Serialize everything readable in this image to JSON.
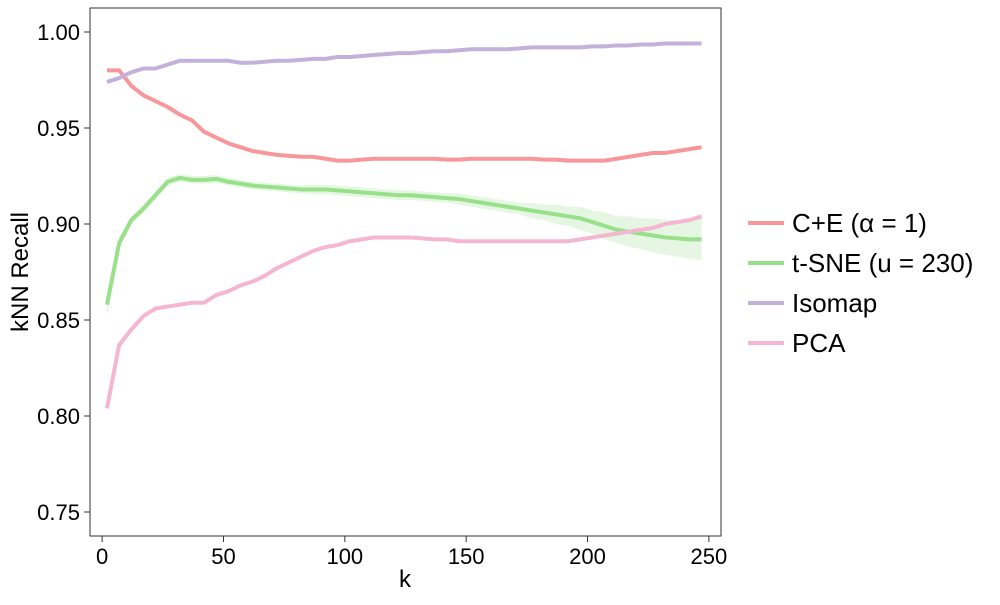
{
  "chart_data": {
    "type": "line",
    "title": "",
    "xlabel": "k",
    "ylabel": "kNN Recall",
    "xlim": [
      -5,
      255
    ],
    "ylim": [
      0.7375,
      1.0125
    ],
    "xticks": [
      0,
      50,
      100,
      150,
      200,
      250
    ],
    "xtick_labels": [
      "0",
      "50",
      "100",
      "150",
      "200",
      "250"
    ],
    "yticks": [
      0.75,
      0.8,
      0.85,
      0.9,
      0.95,
      1.0
    ],
    "ytick_labels": [
      "0.75",
      "0.80",
      "0.85",
      "0.90",
      "0.95",
      "1.00"
    ],
    "grid": false,
    "legend_position": "right",
    "series": [
      {
        "name": "C+E (α = 1)",
        "color": "#F8969A",
        "x": [
          2,
          7,
          12,
          17,
          22,
          27,
          32,
          37,
          42,
          47,
          52,
          57,
          62,
          67,
          72,
          77,
          82,
          87,
          92,
          97,
          102,
          107,
          112,
          117,
          122,
          127,
          132,
          137,
          142,
          147,
          152,
          157,
          162,
          167,
          172,
          177,
          182,
          187,
          192,
          197,
          202,
          207,
          212,
          217,
          222,
          227,
          232,
          237,
          242,
          247
        ],
        "y": [
          0.98,
          0.98,
          0.972,
          0.967,
          0.964,
          0.961,
          0.957,
          0.954,
          0.948,
          0.945,
          0.942,
          0.94,
          0.938,
          0.937,
          0.936,
          0.9355,
          0.935,
          0.935,
          0.934,
          0.933,
          0.933,
          0.9335,
          0.934,
          0.934,
          0.934,
          0.934,
          0.934,
          0.934,
          0.9335,
          0.9335,
          0.934,
          0.934,
          0.934,
          0.934,
          0.934,
          0.934,
          0.9335,
          0.9335,
          0.933,
          0.933,
          0.933,
          0.933,
          0.934,
          0.935,
          0.936,
          0.937,
          0.937,
          0.938,
          0.939,
          0.94
        ]
      },
      {
        "name": "t-SNE (u = 230)",
        "color": "#98E08A",
        "band_color": "#98E08A",
        "x": [
          2,
          7,
          12,
          17,
          22,
          27,
          32,
          37,
          42,
          47,
          52,
          57,
          62,
          67,
          72,
          77,
          82,
          87,
          92,
          97,
          102,
          107,
          112,
          117,
          122,
          127,
          132,
          137,
          142,
          147,
          152,
          157,
          162,
          167,
          172,
          177,
          182,
          187,
          192,
          197,
          202,
          207,
          212,
          217,
          222,
          227,
          232,
          237,
          242,
          247
        ],
        "y": [
          0.858,
          0.89,
          0.902,
          0.908,
          0.915,
          0.922,
          0.924,
          0.923,
          0.923,
          0.9235,
          0.922,
          0.921,
          0.92,
          0.9195,
          0.919,
          0.9185,
          0.918,
          0.918,
          0.918,
          0.9175,
          0.917,
          0.9165,
          0.916,
          0.9155,
          0.915,
          0.915,
          0.9145,
          0.914,
          0.9135,
          0.913,
          0.912,
          0.911,
          0.91,
          0.909,
          0.908,
          0.907,
          0.906,
          0.905,
          0.904,
          0.903,
          0.901,
          0.899,
          0.897,
          0.896,
          0.895,
          0.894,
          0.893,
          0.8925,
          0.892,
          0.892
        ],
        "lower": [
          0.852,
          0.887,
          0.9,
          0.906,
          0.913,
          0.92,
          0.922,
          0.921,
          0.921,
          0.9215,
          0.92,
          0.919,
          0.918,
          0.9175,
          0.917,
          0.9165,
          0.916,
          0.9155,
          0.9155,
          0.915,
          0.9145,
          0.914,
          0.9135,
          0.913,
          0.9125,
          0.9125,
          0.912,
          0.9115,
          0.911,
          0.91,
          0.909,
          0.908,
          0.907,
          0.906,
          0.905,
          0.903,
          0.902,
          0.9,
          0.899,
          0.897,
          0.895,
          0.892,
          0.89,
          0.888,
          0.887,
          0.885,
          0.884,
          0.883,
          0.882,
          0.881
        ],
        "upper": [
          0.864,
          0.893,
          0.904,
          0.91,
          0.917,
          0.924,
          0.926,
          0.925,
          0.925,
          0.9255,
          0.924,
          0.923,
          0.922,
          0.9215,
          0.921,
          0.9205,
          0.92,
          0.9205,
          0.9205,
          0.92,
          0.9195,
          0.919,
          0.9185,
          0.918,
          0.9175,
          0.9175,
          0.917,
          0.9165,
          0.916,
          0.916,
          0.915,
          0.914,
          0.913,
          0.912,
          0.911,
          0.911,
          0.91,
          0.91,
          0.909,
          0.909,
          0.907,
          0.906,
          0.904,
          0.904,
          0.903,
          0.903,
          0.902,
          0.902,
          0.902,
          0.903
        ]
      },
      {
        "name": "Isomap",
        "color": "#C3B0DB",
        "x": [
          2,
          7,
          12,
          17,
          22,
          27,
          32,
          37,
          42,
          47,
          52,
          57,
          62,
          67,
          72,
          77,
          82,
          87,
          92,
          97,
          102,
          107,
          112,
          117,
          122,
          127,
          132,
          137,
          142,
          147,
          152,
          157,
          162,
          167,
          172,
          177,
          182,
          187,
          192,
          197,
          202,
          207,
          212,
          217,
          222,
          227,
          232,
          237,
          242,
          247
        ],
        "y": [
          0.974,
          0.976,
          0.979,
          0.981,
          0.981,
          0.983,
          0.985,
          0.985,
          0.985,
          0.985,
          0.985,
          0.984,
          0.984,
          0.9845,
          0.985,
          0.985,
          0.9855,
          0.986,
          0.986,
          0.987,
          0.987,
          0.9875,
          0.988,
          0.9885,
          0.989,
          0.989,
          0.9895,
          0.99,
          0.99,
          0.9905,
          0.991,
          0.991,
          0.991,
          0.991,
          0.9915,
          0.992,
          0.992,
          0.992,
          0.992,
          0.992,
          0.9925,
          0.9925,
          0.993,
          0.993,
          0.9935,
          0.9935,
          0.994,
          0.994,
          0.994,
          0.994
        ]
      },
      {
        "name": "PCA",
        "color": "#F4B6D1",
        "x": [
          2,
          7,
          12,
          17,
          22,
          27,
          32,
          37,
          42,
          47,
          52,
          57,
          62,
          67,
          72,
          77,
          82,
          87,
          92,
          97,
          102,
          107,
          112,
          117,
          122,
          127,
          132,
          137,
          142,
          147,
          152,
          157,
          162,
          167,
          172,
          177,
          182,
          187,
          192,
          197,
          202,
          207,
          212,
          217,
          222,
          227,
          232,
          237,
          242,
          247
        ],
        "y": [
          0.804,
          0.837,
          0.845,
          0.852,
          0.856,
          0.857,
          0.858,
          0.859,
          0.859,
          0.863,
          0.865,
          0.868,
          0.87,
          0.873,
          0.877,
          0.88,
          0.883,
          0.886,
          0.888,
          0.889,
          0.891,
          0.892,
          0.893,
          0.893,
          0.893,
          0.893,
          0.8925,
          0.892,
          0.892,
          0.891,
          0.891,
          0.891,
          0.891,
          0.891,
          0.891,
          0.891,
          0.891,
          0.891,
          0.891,
          0.892,
          0.893,
          0.894,
          0.895,
          0.896,
          0.897,
          0.898,
          0.9,
          0.901,
          0.902,
          0.904
        ]
      }
    ]
  }
}
